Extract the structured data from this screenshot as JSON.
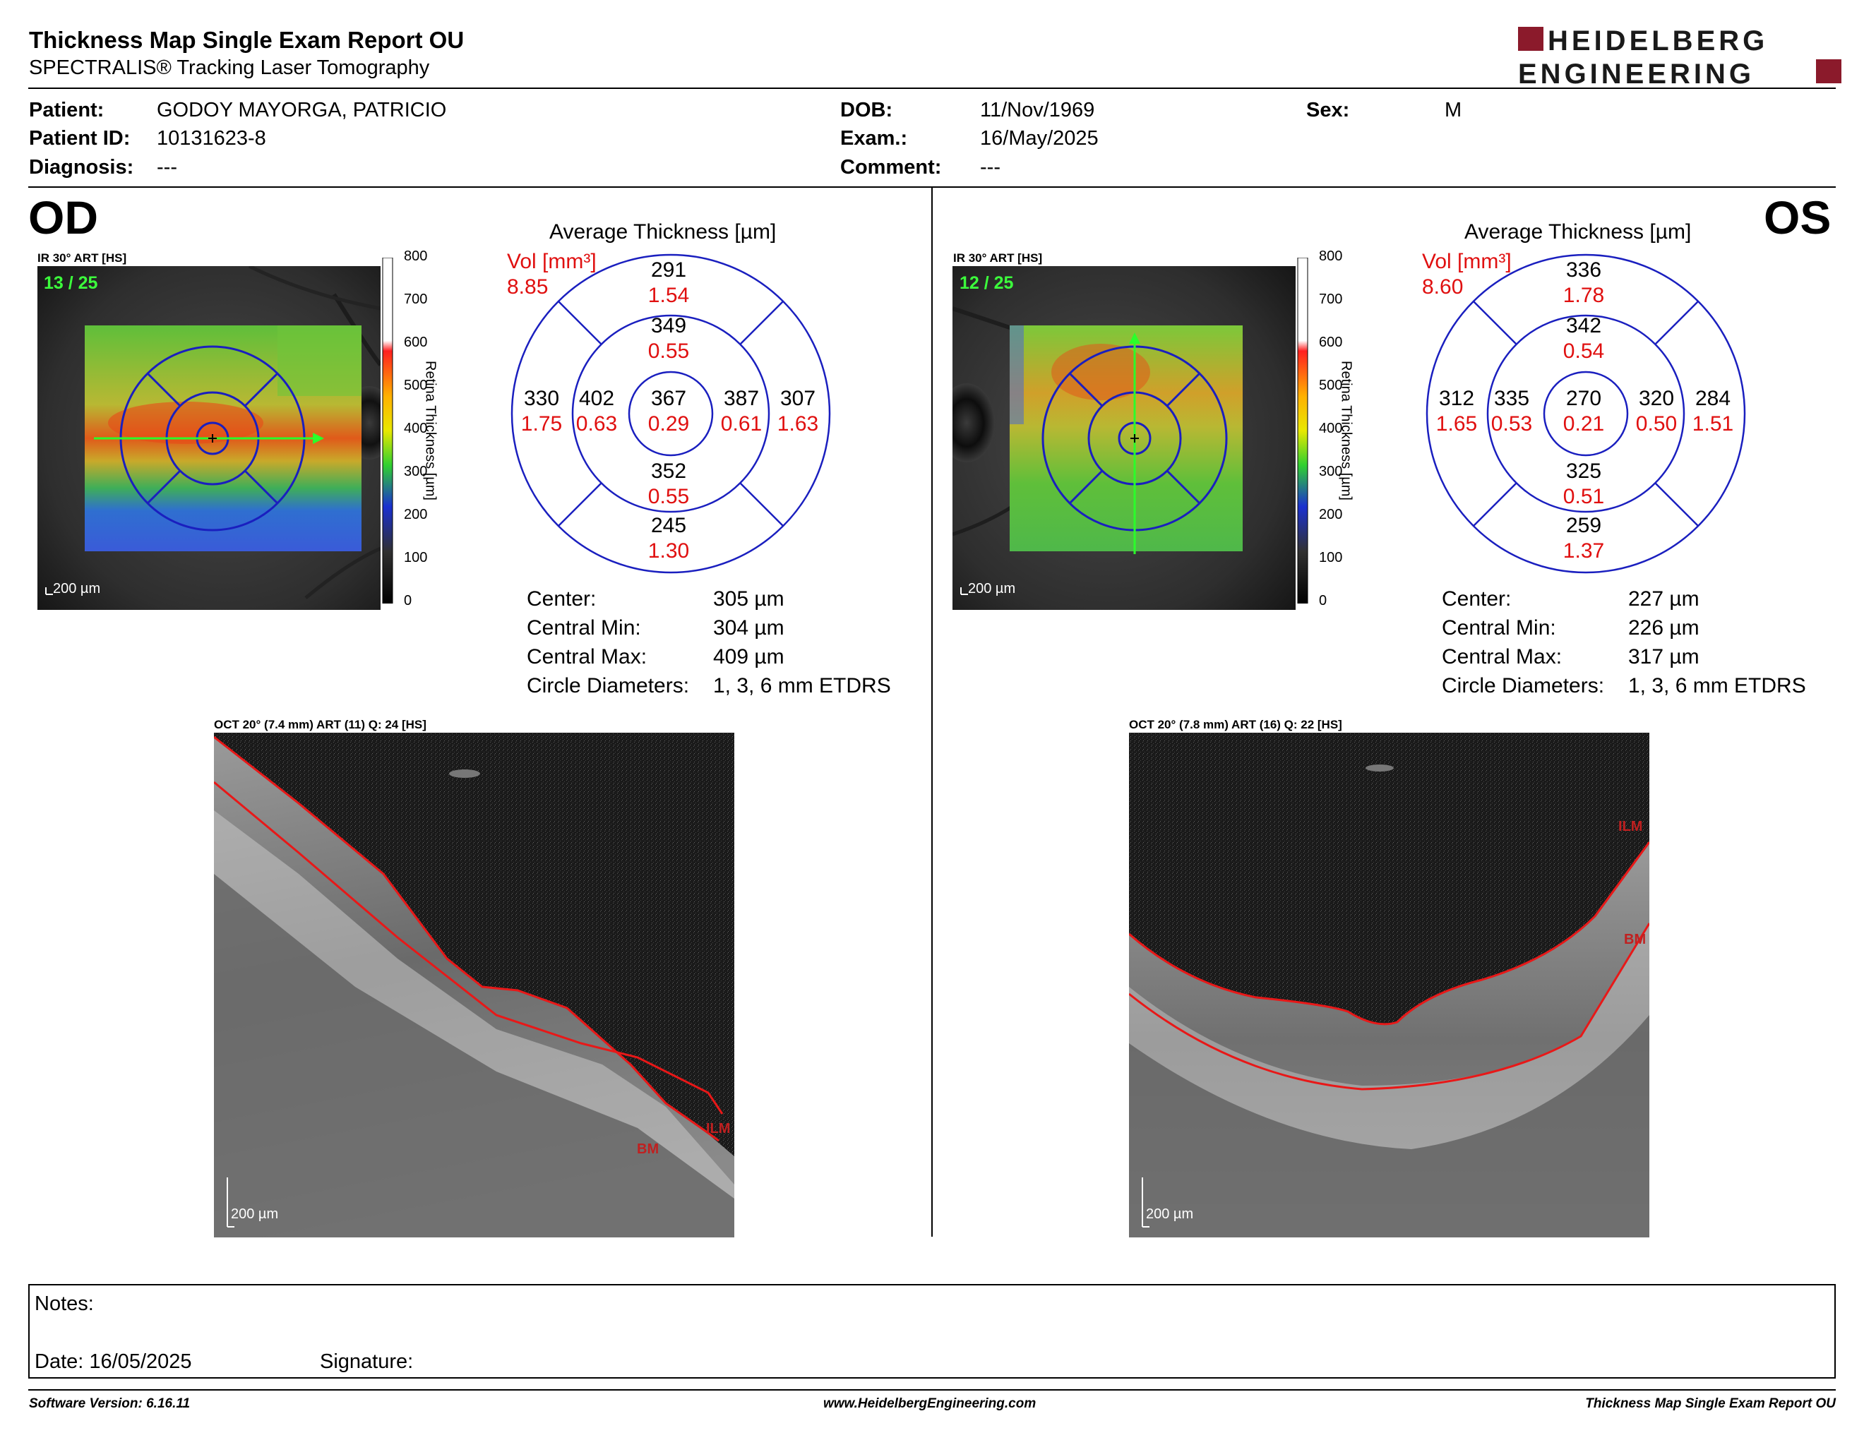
{
  "header": {
    "title": "Thickness Map Single Exam Report OU",
    "subtitle": "SPECTRALIS® Tracking Laser Tomography",
    "logo_line1": "HEIDELBERG",
    "logo_line2": "ENGINEERING",
    "logo_color": "#8b1a2b"
  },
  "patient": {
    "patient_label": "Patient:",
    "patient_value": "GODOY MAYORGA, PATRICIO",
    "id_label": "Patient ID:",
    "id_value": "10131623-8",
    "diagnosis_label": "Diagnosis:",
    "diagnosis_value": "---",
    "dob_label": "DOB:",
    "dob_value": "11/Nov/1969",
    "exam_label": "Exam.:",
    "exam_value": "16/May/2025",
    "comment_label": "Comment:",
    "comment_value": "---",
    "sex_label": "Sex:",
    "sex_value": "M"
  },
  "colorbar": {
    "ticks": [
      "800",
      "700",
      "600",
      "500",
      "400",
      "300",
      "200",
      "100",
      "0"
    ],
    "axis_label": "Retina Thickness [µm]"
  },
  "od": {
    "eye": "OD",
    "ir_label": "IR 30° ART [HS]",
    "slice": "13 / 25",
    "scale": "200 µm",
    "avg_title": "Average Thickness [µm]",
    "vol_label": "Vol [mm³]",
    "vol_total": "8.85",
    "sectors": {
      "center": {
        "t": "367",
        "v": "0.29"
      },
      "inner_sup": {
        "t": "349",
        "v": "0.55"
      },
      "inner_inf": {
        "t": "352",
        "v": "0.55"
      },
      "inner_left": {
        "t": "402",
        "v": "0.63"
      },
      "inner_right": {
        "t": "387",
        "v": "0.61"
      },
      "outer_sup": {
        "t": "291",
        "v": "1.54"
      },
      "outer_inf": {
        "t": "245",
        "v": "1.30"
      },
      "outer_left": {
        "t": "330",
        "v": "1.75"
      },
      "outer_right": {
        "t": "307",
        "v": "1.63"
      }
    },
    "stats": [
      {
        "label": "Center:",
        "value": "305 µm"
      },
      {
        "label": "Central Min:",
        "value": "304 µm"
      },
      {
        "label": "Central Max:",
        "value": "409 µm"
      },
      {
        "label": "Circle Diameters:",
        "value": "1, 3, 6 mm ETDRS"
      }
    ],
    "oct_label": "OCT 20° (7.4 mm) ART (11) Q: 24 [HS]",
    "oct_scale": "200 µm",
    "ilm_label": "ILM",
    "bm_label": "BM"
  },
  "os": {
    "eye": "OS",
    "ir_label": "IR 30° ART [HS]",
    "slice": "12 / 25",
    "scale": "200 µm",
    "avg_title": "Average Thickness [µm]",
    "vol_label": "Vol [mm³]",
    "vol_total": "8.60",
    "sectors": {
      "center": {
        "t": "270",
        "v": "0.21"
      },
      "inner_sup": {
        "t": "342",
        "v": "0.54"
      },
      "inner_inf": {
        "t": "325",
        "v": "0.51"
      },
      "inner_left": {
        "t": "335",
        "v": "0.53"
      },
      "inner_right": {
        "t": "320",
        "v": "0.50"
      },
      "outer_sup": {
        "t": "336",
        "v": "1.78"
      },
      "outer_inf": {
        "t": "259",
        "v": "1.37"
      },
      "outer_left": {
        "t": "312",
        "v": "1.65"
      },
      "outer_right": {
        "t": "284",
        "v": "1.51"
      }
    },
    "stats": [
      {
        "label": "Center:",
        "value": "227 µm"
      },
      {
        "label": "Central Min:",
        "value": "226 µm"
      },
      {
        "label": "Central Max:",
        "value": "317 µm"
      },
      {
        "label": "Circle Diameters:",
        "value": "1, 3, 6 mm ETDRS"
      }
    ],
    "oct_label": "OCT 20° (7.8 mm) ART (16) Q: 22 [HS]",
    "oct_scale": "200 µm",
    "ilm_label": "ILM",
    "bm_label": "BM"
  },
  "notes": {
    "notes_label": "Notes:",
    "date_label": "Date: 16/05/2025",
    "signature_label": "Signature:"
  },
  "footer": {
    "software": "Software Version: 6.16.11",
    "website": "www.HeidelbergEngineering.com",
    "report_name": "Thickness Map Single Exam Report OU"
  }
}
